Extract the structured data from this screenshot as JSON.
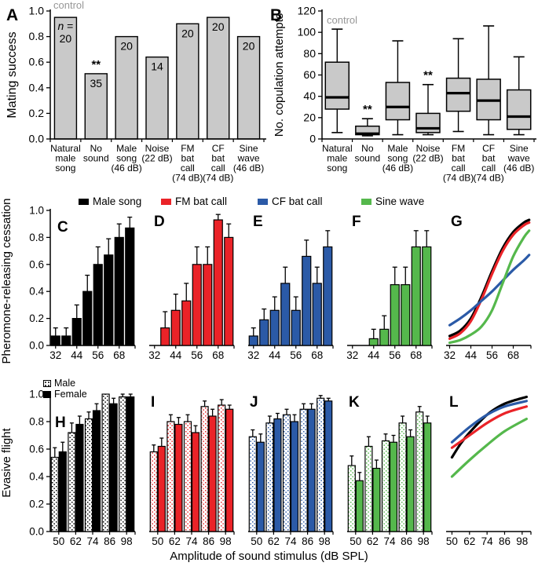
{
  "figure": {
    "xlabel_bottom": "Amplitude of sound stimulus (dB SPL)",
    "row_yticks": [
      "0.0",
      "0.2",
      "0.4",
      "0.6",
      "0.8",
      "1.0"
    ],
    "legend_top": {
      "items": [
        {
          "label": "Male song",
          "color": "#000000"
        },
        {
          "label": "FM bat call",
          "color": "#ea2328"
        },
        {
          "label": "CF bat call",
          "color": "#2b5aa7"
        },
        {
          "label": "Sine wave",
          "color": "#55b84c"
        }
      ]
    },
    "legend_sex": {
      "male": "Male",
      "female": "Female"
    }
  },
  "chart_data": [
    {
      "panel": "A",
      "type": "bar",
      "ylabel": "Mating success",
      "ylim": [
        0,
        1
      ],
      "yticks": [
        "0.0",
        "0.2",
        "0.4",
        "0.6",
        "0.8",
        "1.0"
      ],
      "annotation": "control",
      "n_prefix": "n =",
      "categories": [
        [
          "Natural",
          "male",
          "song"
        ],
        [
          "No",
          "sound"
        ],
        [
          "Male",
          "song",
          "(46 dB)"
        ],
        [
          "Noise",
          "(22 dB)"
        ],
        [
          "FM",
          "bat",
          "call",
          "(74 dB)"
        ],
        [
          "CF",
          "bat",
          "call",
          "(74 dB)"
        ],
        [
          "Sine",
          "wave",
          "(46 dB)"
        ]
      ],
      "values": [
        0.95,
        0.51,
        0.8,
        0.64,
        0.9,
        0.95,
        0.8
      ],
      "n": [
        "20",
        "35",
        "20",
        "14",
        "20",
        "20",
        "20"
      ],
      "sig": [
        "",
        "**",
        "",
        "",
        "",
        "",
        ""
      ],
      "bar_fill": "#c9c9c9"
    },
    {
      "panel": "B",
      "type": "box",
      "ylabel": "No. copulation attempts",
      "ylim": [
        0,
        120
      ],
      "yticks": [
        "0",
        "20",
        "40",
        "60",
        "80",
        "100",
        "120"
      ],
      "annotation": "control",
      "categories": [
        [
          "Natural",
          "male",
          "song"
        ],
        [
          "No",
          "sound"
        ],
        [
          "Male",
          "song",
          "(46 dB)"
        ],
        [
          "Noise",
          "(22 dB)"
        ],
        [
          "FM",
          "bat",
          "call",
          "(74 dB)"
        ],
        [
          "CF",
          "bat",
          "call",
          "(74 dB)"
        ],
        [
          "Sine",
          "wave",
          "(46 dB)"
        ]
      ],
      "boxes": [
        [
          6,
          28,
          39,
          72,
          103
        ],
        [
          3,
          4,
          5,
          12,
          19
        ],
        [
          4,
          18,
          30,
          53,
          92
        ],
        [
          4,
          6,
          10,
          24,
          51
        ],
        [
          7,
          26,
          43,
          57,
          94
        ],
        [
          4,
          18,
          36,
          56,
          106
        ],
        [
          4,
          9,
          21,
          46,
          77
        ]
      ],
      "sig": [
        "",
        "**",
        "",
        "**",
        "",
        "",
        ""
      ],
      "box_fill": "#c9c9c9"
    },
    {
      "panel": "C",
      "type": "bar_err",
      "series": "Male song",
      "color": "#000000",
      "x": [
        32,
        38,
        44,
        50,
        56,
        62,
        68,
        74
      ],
      "xticks": [
        32,
        44,
        56,
        68
      ],
      "ylim": [
        0,
        1
      ],
      "values": [
        0.07,
        0.07,
        0.2,
        0.4,
        0.6,
        0.67,
        0.8,
        0.87
      ],
      "errors": [
        0.06,
        0.06,
        0.1,
        0.12,
        0.13,
        0.12,
        0.1,
        0.08
      ]
    },
    {
      "panel": "D",
      "type": "bar_err",
      "series": "FM bat call",
      "color": "#ea2328",
      "x": [
        32,
        38,
        44,
        50,
        56,
        62,
        68,
        74
      ],
      "xticks": [
        32,
        44,
        56,
        68
      ],
      "ylim": [
        0,
        1
      ],
      "values": [
        0,
        0.13,
        0.26,
        0.33,
        0.6,
        0.6,
        0.93,
        0.8
      ],
      "errors": [
        0,
        0.12,
        0.12,
        0.13,
        0.13,
        0.13,
        0.04,
        0.1
      ]
    },
    {
      "panel": "E",
      "type": "bar_err",
      "series": "CF bat call",
      "color": "#2b5aa7",
      "x": [
        32,
        38,
        44,
        50,
        56,
        62,
        68,
        74
      ],
      "xticks": [
        32,
        44,
        56,
        68
      ],
      "ylim": [
        0,
        1
      ],
      "values": [
        0.07,
        0.19,
        0.26,
        0.46,
        0.26,
        0.66,
        0.46,
        0.73
      ],
      "errors": [
        0.06,
        0.08,
        0.1,
        0.12,
        0.1,
        0.12,
        0.12,
        0.12
      ]
    },
    {
      "panel": "F",
      "type": "bar_err",
      "series": "Sine wave",
      "color": "#55b84c",
      "x": [
        32,
        38,
        44,
        50,
        56,
        62,
        68,
        74
      ],
      "xticks": [
        32,
        44,
        56,
        68
      ],
      "ylim": [
        0,
        1
      ],
      "values": [
        0,
        0,
        0.05,
        0.12,
        0.45,
        0.45,
        0.73,
        0.73
      ],
      "errors": [
        0,
        0,
        0.07,
        0.1,
        0.13,
        0.13,
        0.12,
        0.12
      ]
    },
    {
      "panel": "G",
      "type": "line",
      "shared_ylabel": "Pheromone-releasing cessation",
      "xlim": [
        30,
        78
      ],
      "xticks": [
        32,
        44,
        56,
        68
      ],
      "ylim": [
        0,
        1
      ],
      "series": [
        {
          "name": "Male song",
          "color": "#000000",
          "points": [
            [
              32,
              0.07
            ],
            [
              38,
              0.11
            ],
            [
              44,
              0.2
            ],
            [
              50,
              0.36
            ],
            [
              56,
              0.55
            ],
            [
              62,
              0.72
            ],
            [
              68,
              0.84
            ],
            [
              74,
              0.91
            ],
            [
              77,
              0.93
            ]
          ]
        },
        {
          "name": "FM bat call",
          "color": "#ea2328",
          "points": [
            [
              32,
              0.05
            ],
            [
              38,
              0.09
            ],
            [
              44,
              0.18
            ],
            [
              50,
              0.34
            ],
            [
              56,
              0.53
            ],
            [
              62,
              0.7
            ],
            [
              68,
              0.82
            ],
            [
              74,
              0.89
            ],
            [
              77,
              0.91
            ]
          ]
        },
        {
          "name": "CF bat call",
          "color": "#2b5aa7",
          "points": [
            [
              32,
              0.15
            ],
            [
              38,
              0.2
            ],
            [
              44,
              0.26
            ],
            [
              50,
              0.33
            ],
            [
              56,
              0.4
            ],
            [
              62,
              0.48
            ],
            [
              68,
              0.56
            ],
            [
              74,
              0.63
            ],
            [
              77,
              0.67
            ]
          ]
        },
        {
          "name": "Sine wave",
          "color": "#55b84c",
          "points": [
            [
              32,
              0.02
            ],
            [
              38,
              0.04
            ],
            [
              44,
              0.08
            ],
            [
              50,
              0.14
            ],
            [
              56,
              0.26
            ],
            [
              62,
              0.46
            ],
            [
              68,
              0.66
            ],
            [
              74,
              0.8
            ],
            [
              77,
              0.85
            ]
          ]
        }
      ]
    },
    {
      "panel": "H",
      "type": "grouped_bar",
      "series": "Male song",
      "color": "#000000",
      "x": [
        50,
        62,
        74,
        86,
        98
      ],
      "ylim": [
        0,
        1
      ],
      "male": [
        0.54,
        0.72,
        0.82,
        1.0,
        0.98
      ],
      "male_err": [
        0.07,
        0.07,
        0.05,
        0.0,
        0.02
      ],
      "female": [
        0.58,
        0.78,
        0.88,
        0.93,
        0.98
      ],
      "female_err": [
        0.07,
        0.06,
        0.05,
        0.04,
        0.02
      ]
    },
    {
      "panel": "I",
      "type": "grouped_bar",
      "series": "FM bat call",
      "color": "#ea2328",
      "x": [
        50,
        62,
        74,
        86,
        98
      ],
      "ylim": [
        0,
        1
      ],
      "male": [
        0.58,
        0.8,
        0.8,
        0.91,
        0.92
      ],
      "male_err": [
        0.05,
        0.05,
        0.05,
        0.04,
        0.04
      ],
      "female": [
        0.62,
        0.78,
        0.72,
        0.84,
        0.89
      ],
      "female_err": [
        0.06,
        0.05,
        0.05,
        0.05,
        0.03
      ]
    },
    {
      "panel": "J",
      "type": "grouped_bar",
      "series": "CF bat call",
      "color": "#2b5aa7",
      "x": [
        50,
        62,
        74,
        86,
        98
      ],
      "ylim": [
        0,
        1
      ],
      "male": [
        0.69,
        0.79,
        0.85,
        0.89,
        0.97
      ],
      "male_err": [
        0.05,
        0.05,
        0.04,
        0.04,
        0.02
      ],
      "female": [
        0.65,
        0.82,
        0.8,
        0.89,
        0.95
      ],
      "female_err": [
        0.06,
        0.04,
        0.05,
        0.04,
        0.02
      ]
    },
    {
      "panel": "K",
      "type": "grouped_bar",
      "series": "Sine wave",
      "color": "#55b84c",
      "x": [
        50,
        62,
        74,
        86,
        98
      ],
      "ylim": [
        0,
        1
      ],
      "male": [
        0.48,
        0.62,
        0.66,
        0.79,
        0.87
      ],
      "male_err": [
        0.07,
        0.07,
        0.05,
        0.05,
        0.04
      ],
      "female": [
        0.37,
        0.46,
        0.65,
        0.69,
        0.79
      ],
      "female_err": [
        0.06,
        0.06,
        0.05,
        0.05,
        0.05
      ]
    },
    {
      "panel": "L",
      "type": "line",
      "shared_ylabel": "Evasive flight",
      "xlim": [
        46,
        104
      ],
      "xticks": [
        50,
        62,
        74,
        86,
        98
      ],
      "ylim": [
        0,
        1
      ],
      "series": [
        {
          "name": "Male song",
          "color": "#000000",
          "points": [
            [
              50,
              0.54
            ],
            [
              56,
              0.64
            ],
            [
              62,
              0.72
            ],
            [
              74,
              0.85
            ],
            [
              86,
              0.93
            ],
            [
              101,
              0.98
            ]
          ]
        },
        {
          "name": "FM bat call",
          "color": "#ea2328",
          "points": [
            [
              50,
              0.61
            ],
            [
              62,
              0.7
            ],
            [
              74,
              0.79
            ],
            [
              86,
              0.86
            ],
            [
              101,
              0.91
            ]
          ]
        },
        {
          "name": "CF bat call",
          "color": "#2b5aa7",
          "points": [
            [
              50,
              0.65
            ],
            [
              62,
              0.76
            ],
            [
              74,
              0.85
            ],
            [
              86,
              0.91
            ],
            [
              101,
              0.95
            ]
          ]
        },
        {
          "name": "Sine wave",
          "color": "#55b84c",
          "points": [
            [
              50,
              0.4
            ],
            [
              62,
              0.52
            ],
            [
              74,
              0.63
            ],
            [
              86,
              0.73
            ],
            [
              101,
              0.82
            ]
          ]
        }
      ]
    }
  ]
}
